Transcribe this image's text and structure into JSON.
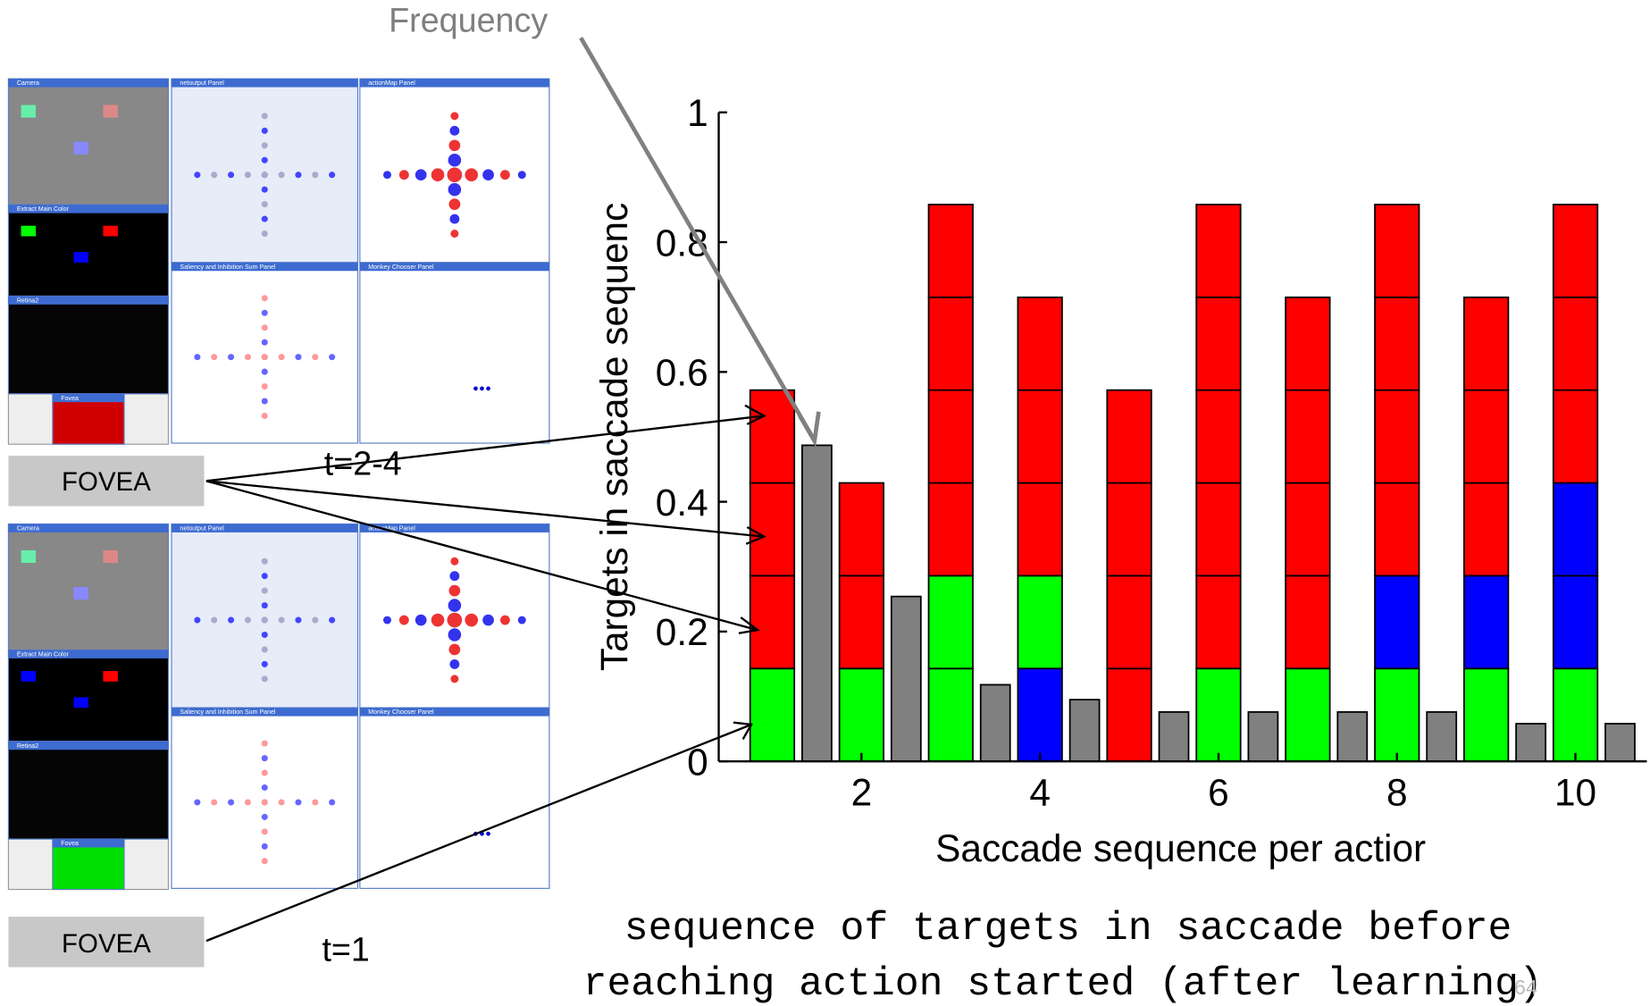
{
  "screens": [
    {
      "panels": [
        "Camera",
        "Extract Main Color",
        "Retina2",
        "Fovea",
        "netoutput Panel",
        "Saliency and Inhibition Sum Panel",
        "actionMap Panel",
        "Monkey Chooser Panel"
      ]
    },
    {
      "panels": [
        "Camera",
        "Extract Main Color",
        "Retina2",
        "Fovea",
        "netoutput Panel",
        "Saliency and Inhibition Sum Panel",
        "actionMap Panel",
        "Monkey Chooser Panel"
      ]
    }
  ],
  "labels": {
    "fovea_top": "FOVEA",
    "fovea_bottom": "FOVEA",
    "time_top": "t=2-4",
    "time_bottom": "t=1"
  },
  "caption": [
    "sequence of targets in saccade before",
    "reaching action started  (after learning)"
  ],
  "page_number": "64",
  "chart_data": {
    "type": "bar",
    "x_label": "Saccade sequence per actior",
    "y_label": "Targets in saccade sequenc",
    "x": [
      1,
      2,
      3,
      4,
      5,
      6,
      7,
      8,
      9,
      10
    ],
    "stacks": [
      [
        {
          "color": "#00ff00",
          "value": 0.143
        },
        {
          "color": "#ff0000",
          "value": 0.143
        },
        {
          "color": "#ff0000",
          "value": 0.143
        },
        {
          "color": "#ff0000",
          "value": 0.143
        }
      ],
      [
        {
          "color": "#00ff00",
          "value": 0.143
        },
        {
          "color": "#ff0000",
          "value": 0.143
        },
        {
          "color": "#ff0000",
          "value": 0.143
        }
      ],
      [
        {
          "color": "#00ff00",
          "value": 0.143
        },
        {
          "color": "#00ff00",
          "value": 0.143
        },
        {
          "color": "#ff0000",
          "value": 0.143
        },
        {
          "color": "#ff0000",
          "value": 0.143
        },
        {
          "color": "#ff0000",
          "value": 0.143
        },
        {
          "color": "#ff0000",
          "value": 0.143
        }
      ],
      [
        {
          "color": "#0000ff",
          "value": 0.143
        },
        {
          "color": "#00ff00",
          "value": 0.143
        },
        {
          "color": "#ff0000",
          "value": 0.143
        },
        {
          "color": "#ff0000",
          "value": 0.143
        },
        {
          "color": "#ff0000",
          "value": 0.143
        }
      ],
      [
        {
          "color": "#ff0000",
          "value": 0.143
        },
        {
          "color": "#ff0000",
          "value": 0.143
        },
        {
          "color": "#ff0000",
          "value": 0.143
        },
        {
          "color": "#ff0000",
          "value": 0.143
        }
      ],
      [
        {
          "color": "#00ff00",
          "value": 0.143
        },
        {
          "color": "#ff0000",
          "value": 0.143
        },
        {
          "color": "#ff0000",
          "value": 0.143
        },
        {
          "color": "#ff0000",
          "value": 0.143
        },
        {
          "color": "#ff0000",
          "value": 0.143
        },
        {
          "color": "#ff0000",
          "value": 0.143
        }
      ],
      [
        {
          "color": "#00ff00",
          "value": 0.143
        },
        {
          "color": "#ff0000",
          "value": 0.143
        },
        {
          "color": "#ff0000",
          "value": 0.143
        },
        {
          "color": "#ff0000",
          "value": 0.143
        },
        {
          "color": "#ff0000",
          "value": 0.143
        }
      ],
      [
        {
          "color": "#00ff00",
          "value": 0.143
        },
        {
          "color": "#0000ff",
          "value": 0.143
        },
        {
          "color": "#ff0000",
          "value": 0.143
        },
        {
          "color": "#ff0000",
          "value": 0.143
        },
        {
          "color": "#ff0000",
          "value": 0.143
        },
        {
          "color": "#ff0000",
          "value": 0.143
        }
      ],
      [
        {
          "color": "#00ff00",
          "value": 0.143
        },
        {
          "color": "#0000ff",
          "value": 0.143
        },
        {
          "color": "#ff0000",
          "value": 0.143
        },
        {
          "color": "#ff0000",
          "value": 0.143
        },
        {
          "color": "#ff0000",
          "value": 0.143
        }
      ],
      [
        {
          "color": "#00ff00",
          "value": 0.143
        },
        {
          "color": "#0000ff",
          "value": 0.143
        },
        {
          "color": "#0000ff",
          "value": 0.143
        },
        {
          "color": "#ff0000",
          "value": 0.143
        },
        {
          "color": "#ff0000",
          "value": 0.143
        },
        {
          "color": "#ff0000",
          "value": 0.143
        }
      ]
    ],
    "frequency": {
      "name": "Frequency",
      "color": "#808080",
      "values": [
        0.487,
        0.254,
        0.118,
        0.095,
        0.076,
        0.076,
        0.076,
        0.076,
        0.058,
        0.058
      ]
    },
    "xlim": [
      0.4,
      10.8
    ],
    "ylim": [
      0,
      1
    ],
    "xticks": [
      2,
      4,
      6,
      8,
      10
    ],
    "yticks": [
      0,
      0.2,
      0.4,
      0.6,
      0.8,
      1
    ]
  }
}
